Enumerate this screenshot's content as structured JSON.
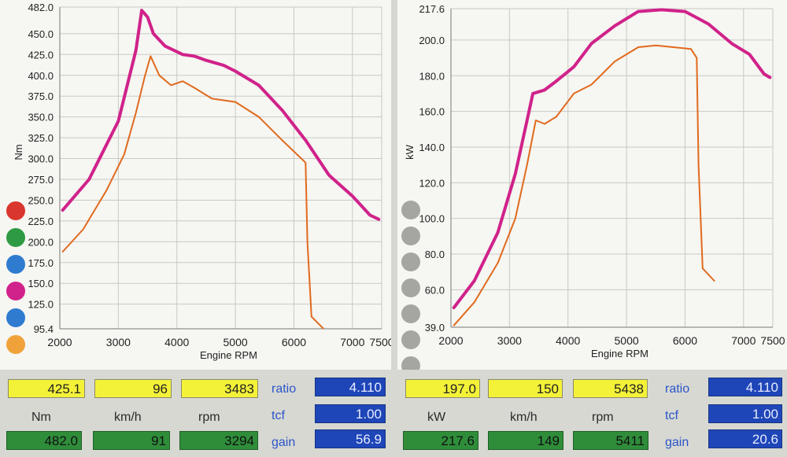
{
  "chart_data": [
    {
      "type": "line",
      "id": "torque",
      "ylabel": "Nm",
      "xlabel": "Engine RPM",
      "ylim": [
        95.4,
        482.0
      ],
      "xlim": [
        2000,
        7500
      ],
      "y_ticks": [
        "482.0",
        "450.0",
        "425.0",
        "400.0",
        "375.0",
        "350.0",
        "325.0",
        "300.0",
        "275.0",
        "250.0",
        "225.0",
        "200.0",
        "175.0",
        "150.0",
        "125.0",
        "95.4"
      ],
      "x_ticks": [
        "2000",
        "3000",
        "4000",
        "5000",
        "6000",
        "7000",
        "7500"
      ],
      "series": [
        {
          "color": "#d0228a",
          "values": [
            [
              2050,
              238
            ],
            [
              2500,
              275
            ],
            [
              3000,
              345
            ],
            [
              3300,
              430
            ],
            [
              3400,
              478
            ],
            [
              3500,
              470
            ],
            [
              3600,
              450
            ],
            [
              3800,
              435
            ],
            [
              4100,
              425
            ],
            [
              4300,
              423
            ],
            [
              4500,
              418
            ],
            [
              4800,
              412
            ],
            [
              5000,
              405
            ],
            [
              5400,
              388
            ],
            [
              5800,
              358
            ],
            [
              6200,
              322
            ],
            [
              6600,
              280
            ],
            [
              7000,
              255
            ],
            [
              7300,
              232
            ],
            [
              7450,
              227
            ]
          ]
        },
        {
          "color": "#e06a1e",
          "values": [
            [
              2050,
              188
            ],
            [
              2400,
              215
            ],
            [
              2800,
              262
            ],
            [
              3100,
              305
            ],
            [
              3300,
              355
            ],
            [
              3450,
              398
            ],
            [
              3550,
              423
            ],
            [
              3700,
              400
            ],
            [
              3900,
              388
            ],
            [
              4100,
              393
            ],
            [
              4300,
              385
            ],
            [
              4600,
              372
            ],
            [
              5000,
              368
            ],
            [
              5400,
              350
            ],
            [
              5800,
              322
            ],
            [
              6200,
              295
            ],
            [
              6230,
              200
            ],
            [
              6300,
              110
            ],
            [
              6500,
              96
            ]
          ]
        }
      ]
    },
    {
      "type": "line",
      "id": "power",
      "ylabel": "kW",
      "xlabel": "Engine RPM",
      "ylim": [
        39.0,
        217.6
      ],
      "xlim": [
        2000,
        7500
      ],
      "y_ticks": [
        "217.6",
        "200.0",
        "180.0",
        "160.0",
        "140.0",
        "120.0",
        "100.0",
        "80.0",
        "60.0",
        "39.0"
      ],
      "x_ticks": [
        "2000",
        "3000",
        "4000",
        "5000",
        "6000",
        "7000",
        "7500"
      ],
      "series": [
        {
          "color": "#d0228a",
          "values": [
            [
              2050,
              50
            ],
            [
              2400,
              65
            ],
            [
              2800,
              92
            ],
            [
              3100,
              125
            ],
            [
              3300,
              155
            ],
            [
              3400,
              170
            ],
            [
              3600,
              172
            ],
            [
              3800,
              177
            ],
            [
              4100,
              185
            ],
            [
              4400,
              198
            ],
            [
              4800,
              208
            ],
            [
              5200,
              216
            ],
            [
              5600,
              217
            ],
            [
              6000,
              216
            ],
            [
              6400,
              209
            ],
            [
              6800,
              198
            ],
            [
              7100,
              192
            ],
            [
              7350,
              181
            ],
            [
              7450,
              179
            ]
          ]
        },
        {
          "color": "#e06a1e",
          "values": [
            [
              2050,
              40
            ],
            [
              2400,
              53
            ],
            [
              2800,
              75
            ],
            [
              3100,
              100
            ],
            [
              3300,
              130
            ],
            [
              3450,
              155
            ],
            [
              3600,
              153
            ],
            [
              3800,
              157
            ],
            [
              4100,
              170
            ],
            [
              4400,
              175
            ],
            [
              4800,
              188
            ],
            [
              5200,
              196
            ],
            [
              5500,
              197
            ],
            [
              5800,
              196
            ],
            [
              6100,
              195
            ],
            [
              6200,
              190
            ],
            [
              6230,
              130
            ],
            [
              6300,
              72
            ],
            [
              6500,
              65
            ]
          ]
        }
      ]
    }
  ],
  "left_circles": [
    "#d9362e",
    "#2f9a44",
    "#2f7bd0",
    "#d0228a",
    "#2f7bd0",
    "#f0a23a"
  ],
  "right_circles": [
    "#a5a5a1",
    "#a5a5a1",
    "#a5a5a1",
    "#a5a5a1",
    "#a5a5a1",
    "#a5a5a1",
    "#a5a5a1"
  ],
  "readout_left": {
    "row1": [
      "425.1",
      "96",
      "3483"
    ],
    "labels": [
      "Nm",
      "km/h",
      "rpm"
    ],
    "row3": [
      "482.0",
      "91",
      "3294"
    ]
  },
  "readout_right": {
    "row1": [
      "197.0",
      "150",
      "5438"
    ],
    "labels": [
      "kW",
      "km/h",
      "rpm"
    ],
    "row3": [
      "217.6",
      "149",
      "5411"
    ]
  },
  "factors_left": {
    "ratio_label": "ratio",
    "tcf_label": "tcf",
    "gain_label": "gain",
    "ratio": "4.110",
    "tcf": "1.00",
    "gain": "56.9"
  },
  "factors_right": {
    "ratio_label": "ratio",
    "tcf_label": "tcf",
    "gain_label": "gain",
    "ratio": "4.110",
    "tcf": "1.00",
    "gain": "20.6"
  }
}
